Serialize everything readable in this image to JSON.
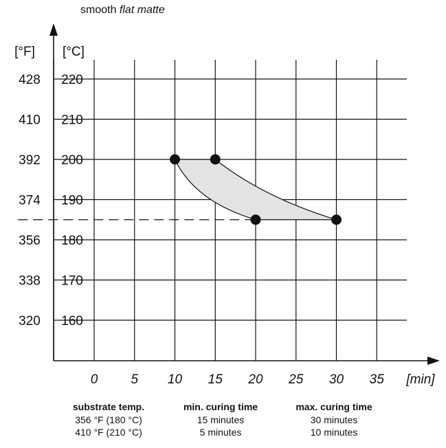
{
  "title": {
    "text": "smooth ",
    "emphasis": "flat matte"
  },
  "chart_data": {
    "type": "area",
    "title": "smooth flat matte",
    "xlabel": "[min]",
    "ylabel_f": "[°F]",
    "ylabel_c": "[°C]",
    "xlim": [
      -5,
      39
    ],
    "ylim": [
      150,
      228
    ],
    "x_ticks": [
      0,
      5,
      10,
      15,
      20,
      25,
      30,
      35
    ],
    "y_ticks_c": [
      160,
      170,
      180,
      190,
      200,
      210,
      220
    ],
    "y_ticks_f": [
      320,
      338,
      356,
      374,
      392,
      410,
      428
    ],
    "grid": true,
    "points": [
      {
        "x": 10,
        "y": 200
      },
      {
        "x": 15,
        "y": 200
      },
      {
        "x": 20,
        "y": 185
      },
      {
        "x": 30,
        "y": 185
      }
    ],
    "min_curve": [
      [
        10,
        200
      ],
      [
        20,
        185
      ]
    ],
    "max_curve": [
      [
        15,
        200
      ],
      [
        30,
        185
      ]
    ],
    "reference_line": {
      "y": 185,
      "x_from": -5,
      "x_to": 20,
      "style": "dashed"
    },
    "fill_color": "#e3e3e3",
    "line_color": "#111111"
  },
  "table": {
    "headers": [
      "substrate temp.",
      "min. curing time",
      "max. curing time"
    ],
    "rows": [
      [
        "356 °F (180 °C)",
        "15 minutes",
        "30 minutes"
      ],
      [
        "410 °F (210 °C)",
        "5 minutes",
        "10 minutes"
      ]
    ]
  }
}
